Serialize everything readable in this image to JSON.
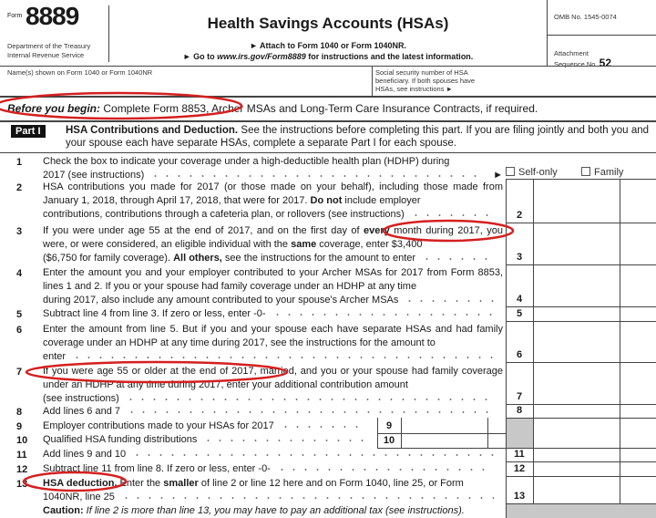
{
  "header": {
    "form_label": "Form",
    "form_number": "8889",
    "dept_line1": "Department of the Treasury",
    "dept_line2": "Internal Revenue Service",
    "title": "Health Savings Accounts (HSAs)",
    "attach": "► Attach to Form 1040 or Form 1040NR.",
    "goto_prefix": "► Go to ",
    "goto_url": "www.irs.gov/Form8889",
    "goto_suffix": " for instructions and the latest information.",
    "omb": "OMB No. 1545-0074",
    "attachment": "Attachment",
    "sequence_label": "Sequence No.",
    "sequence_no": "52"
  },
  "names_label": "Name(s) shown on Form 1040 or Form 1040NR",
  "ssn_label": "Social security number of HSA beneficiary. If both spouses have HSAs, see instructions ►",
  "before": {
    "lead": "Before you begin:",
    "text": " Complete Form 8853, Archer MSAs and Long-Term Care Insurance Contracts, if required."
  },
  "part": {
    "badge": "Part I",
    "title": "HSA Contributions and Deduction.",
    "text": " See the instructions before completing this part. If you are filing jointly and both you and your spouse each have separate HSAs, complete a separate Part I for each spouse."
  },
  "lines": [
    {
      "n": "1",
      "a": "Check the box to indicate your coverage under a high-deductible health plan (HDHP) during",
      "last": "2017 (see instructions)"
    },
    {
      "n": "2",
      "a": "HSA contributions you made for 2017 (or those made on your behalf), including  those made from January 1, 2018, through April 17, 2018, that were for 2017. ",
      "b": "Do not",
      "c": " include employer",
      "last": "contributions, contributions through a cafeteria plan, or rollovers (see instructions)"
    },
    {
      "n": "3",
      "a": "If you were under age 55 at the end of 2017, and on the first day of ",
      "b": "every",
      "c": " month during 2017, you were, or were considered, an eligible individual with the ",
      "d": "same",
      "e": " coverage, enter $3,400",
      "last_a": "($6,750 for family coverage). ",
      "last_b": "All others,",
      "last_c": " see the instructions for the amount to enter"
    },
    {
      "n": "4",
      "a": "Enter the amount you and your employer contributed to your Archer MSAs for 2017 from Form 8853, lines 1 and 2. If you or your spouse had family coverage under an HDHP at any time",
      "last": "during  2017, also include any amount contributed to your spouse's Archer MSAs"
    },
    {
      "n": "5",
      "last": "Subtract line 4 from line 3. If zero or less, enter -0-"
    },
    {
      "n": "6",
      "a": "Enter the amount from line 5. But if you and your spouse each have separate HSAs and had family coverage under an HDHP at any time during 2017, see the instructions for the amount to",
      "last": "enter"
    },
    {
      "n": "7",
      "a": "If you were age 55 or older at the end of 2017, married, and you or your spouse had family coverage under an HDHP at any time during 2017, enter your additional contribution amount",
      "last": "(see instructions)"
    },
    {
      "n": "8",
      "last": "Add lines 6 and 7"
    },
    {
      "n": "9",
      "last": "Employer contributions made to your HSAs for 2017"
    },
    {
      "n": "10",
      "last": "Qualified HSA funding distributions"
    },
    {
      "n": "11",
      "last": "Add lines 9 and 10"
    },
    {
      "n": "12",
      "last": "Subtract line 11 from line 8. If zero or less, enter -0-"
    },
    {
      "n": "13",
      "a_b": "HSA deduction.",
      "a": " Enter the ",
      "b": "smaller",
      "c": " of line 2 or line 12 here and on Form 1040, line 25, or Form",
      "last": "1040NR, line 25"
    }
  ],
  "coverage": {
    "self": "Self-only",
    "family": "Family"
  },
  "caution": {
    "lead": "Caution:",
    "text": " If line 2 is more than line 13, you may have to pay an additional tax (see instructions)."
  },
  "colors": {
    "annotation": "#d42020",
    "shade": "#c8c8c8"
  }
}
